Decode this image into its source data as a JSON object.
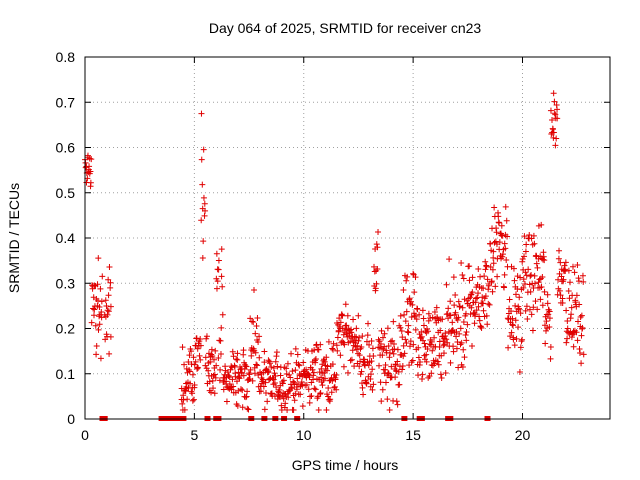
{
  "chart_data": {
    "type": "scatter",
    "title": "Day 064 of 2025, SRMTID for receiver cn23",
    "xlabel": "GPS time / hours",
    "ylabel": "SRMTID / TECUs",
    "xlim": [
      0,
      24
    ],
    "ylim": [
      0,
      0.8
    ],
    "xticks": [
      0,
      5,
      10,
      15,
      20
    ],
    "xtick_labels": [
      "0",
      "5",
      "10",
      "15",
      "20"
    ],
    "yticks": [
      0,
      0.1,
      0.2,
      0.3,
      0.4,
      0.5,
      0.6,
      0.7,
      0.8
    ],
    "ytick_labels": [
      "0",
      "0.1",
      "0.2",
      "0.3",
      "0.4",
      "0.5",
      "0.6",
      "0.7",
      "0.8"
    ],
    "grid": true,
    "marker": "+",
    "color": "#e00000",
    "segments": [
      {
        "t0": 0.0,
        "t1": 0.3,
        "mean": 0.56,
        "spread": 0.05
      },
      {
        "t0": 0.3,
        "t1": 0.8,
        "mean": 0.24,
        "spread": 0.08
      },
      {
        "t0": 0.9,
        "t1": 1.2,
        "mean": 0.25,
        "spread": 0.07
      },
      {
        "t0": 4.4,
        "t1": 5.0,
        "mean": 0.09,
        "spread": 0.05
      },
      {
        "t0": 5.0,
        "t1": 5.3,
        "mean": 0.15,
        "spread": 0.06
      },
      {
        "t0": 5.3,
        "t1": 5.5,
        "mean": 0.4,
        "spread": 0.22
      },
      {
        "t0": 5.5,
        "t1": 6.0,
        "mean": 0.11,
        "spread": 0.06
      },
      {
        "t0": 6.0,
        "t1": 6.3,
        "mean": 0.24,
        "spread": 0.12
      },
      {
        "t0": 6.3,
        "t1": 7.5,
        "mean": 0.09,
        "spread": 0.05
      },
      {
        "t0": 7.5,
        "t1": 8.0,
        "mean": 0.14,
        "spread": 0.09
      },
      {
        "t0": 8.0,
        "t1": 10.0,
        "mean": 0.08,
        "spread": 0.05
      },
      {
        "t0": 10.0,
        "t1": 11.5,
        "mean": 0.1,
        "spread": 0.06
      },
      {
        "t0": 11.5,
        "t1": 12.5,
        "mean": 0.18,
        "spread": 0.05
      },
      {
        "t0": 12.5,
        "t1": 13.2,
        "mean": 0.12,
        "spread": 0.06
      },
      {
        "t0": 13.2,
        "t1": 13.4,
        "mean": 0.35,
        "spread": 0.06
      },
      {
        "t0": 13.4,
        "t1": 14.5,
        "mean": 0.13,
        "spread": 0.08
      },
      {
        "t0": 14.5,
        "t1": 15.2,
        "mean": 0.22,
        "spread": 0.1
      },
      {
        "t0": 15.2,
        "t1": 16.5,
        "mean": 0.16,
        "spread": 0.07
      },
      {
        "t0": 16.5,
        "t1": 17.5,
        "mean": 0.2,
        "spread": 0.1
      },
      {
        "t0": 17.5,
        "t1": 18.5,
        "mean": 0.27,
        "spread": 0.08
      },
      {
        "t0": 18.5,
        "t1": 19.3,
        "mean": 0.4,
        "spread": 0.1
      },
      {
        "t0": 19.3,
        "t1": 20.0,
        "mean": 0.24,
        "spread": 0.09
      },
      {
        "t0": 20.0,
        "t1": 21.0,
        "mean": 0.31,
        "spread": 0.08
      },
      {
        "t0": 21.0,
        "t1": 21.3,
        "mean": 0.22,
        "spread": 0.07
      },
      {
        "t0": 21.3,
        "t1": 21.6,
        "mean": 0.66,
        "spread": 0.06
      },
      {
        "t0": 21.6,
        "t1": 22.0,
        "mean": 0.32,
        "spread": 0.06
      },
      {
        "t0": 22.0,
        "t1": 22.8,
        "mean": 0.23,
        "spread": 0.08
      }
    ],
    "zero_markers": [
      0.8,
      0.9,
      3.5,
      3.7,
      3.9,
      4.1,
      4.3,
      4.5,
      5.6,
      6.0,
      6.1,
      7.6,
      8.2,
      8.7,
      9.1,
      9.7,
      14.6,
      15.3,
      15.4,
      16.6,
      16.7,
      18.4
    ]
  }
}
